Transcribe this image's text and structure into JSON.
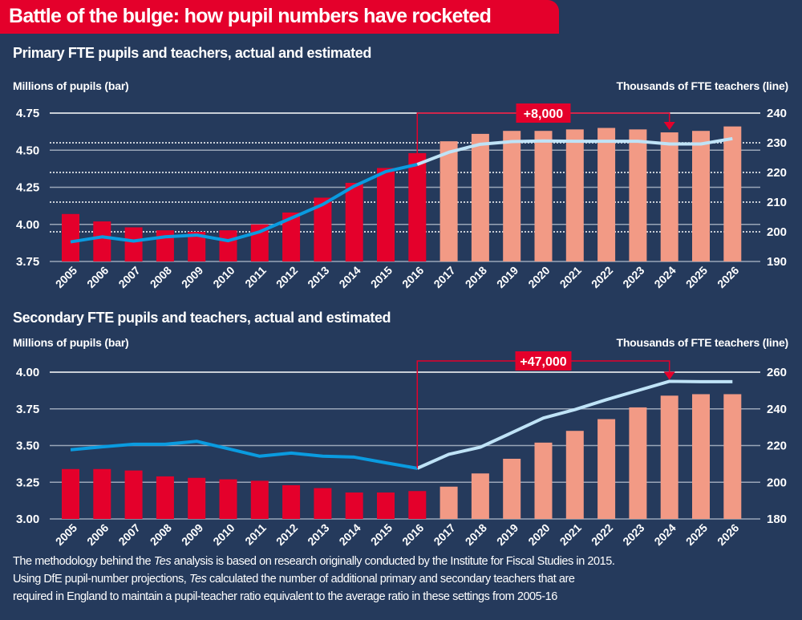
{
  "title": "Battle of the bulge: how pupil numbers have rocketed",
  "colors": {
    "background": "#253a5c",
    "banner": "#e4002b",
    "actual_bar": "#e4002b",
    "estimated_bar": "#f29a85",
    "actual_line": "#0a9be0",
    "estimated_line": "#bfe3f7",
    "annotation": "#e4002b"
  },
  "chart_data": [
    {
      "type": "bar+line",
      "title": "Primary FTE pupils and teachers, actual and estimated",
      "ylabel": "Millions of pupils (bar)",
      "y2label": "Thousands of FTE teachers (line)",
      "ylim": [
        3.75,
        4.75
      ],
      "yticks": [
        "4.75",
        "4.50",
        "4.25",
        "4.00",
        "3.75"
      ],
      "y2lim": [
        190,
        240
      ],
      "y2ticks": [
        "240",
        "230",
        "220",
        "210",
        "200",
        "190"
      ],
      "categories": [
        "2005",
        "2006",
        "2007",
        "2008",
        "2009",
        "2010",
        "2011",
        "2012",
        "2013",
        "2014",
        "2015",
        "2016",
        "2017",
        "2018",
        "2019",
        "2020",
        "2021",
        "2022",
        "2023",
        "2024",
        "2025",
        "2026"
      ],
      "last_actual": "2016",
      "pupils_millions": [
        4.07,
        4.02,
        3.98,
        3.96,
        3.95,
        3.96,
        4.0,
        4.08,
        4.18,
        4.28,
        4.38,
        4.48,
        4.56,
        4.61,
        4.63,
        4.63,
        4.64,
        4.65,
        4.64,
        4.62,
        4.63,
        4.66
      ],
      "teachers_thousands": [
        196.6,
        198.3,
        196.9,
        198.3,
        198.9,
        197.0,
        200.0,
        204.6,
        209.2,
        215.4,
        220.3,
        222.7,
        226.8,
        229.5,
        230.4,
        230.6,
        230.5,
        230.5,
        230.5,
        229.6,
        229.6,
        231.4
      ],
      "annotation": {
        "label": "+8,000",
        "from": "2016",
        "to": "2024"
      },
      "grid": true
    },
    {
      "type": "bar+line",
      "title": "Secondary FTE pupils and teachers, actual and estimated",
      "ylabel": "Millions of pupils (bar)",
      "y2label": "Thousands of FTE teachers (line)",
      "ylim": [
        3.0,
        4.0
      ],
      "yticks": [
        "4.00",
        "3.75",
        "3.50",
        "3.25",
        "3.00"
      ],
      "y2lim": [
        180,
        260
      ],
      "y2ticks": [
        "260",
        "240",
        "220",
        "200",
        "180"
      ],
      "categories": [
        "2005",
        "2006",
        "2007",
        "2008",
        "2009",
        "2010",
        "2011",
        "2012",
        "2013",
        "2014",
        "2015",
        "2016",
        "2017",
        "2018",
        "2019",
        "2020",
        "2021",
        "2022",
        "2023",
        "2024",
        "2025",
        "2026"
      ],
      "last_actual": "2016",
      "pupils_millions": [
        3.34,
        3.34,
        3.33,
        3.29,
        3.28,
        3.27,
        3.26,
        3.23,
        3.21,
        3.18,
        3.18,
        3.19,
        3.22,
        3.31,
        3.41,
        3.52,
        3.6,
        3.68,
        3.76,
        3.84,
        3.85,
        3.85
      ],
      "teachers_thousands": [
        217.7,
        219.3,
        220.7,
        220.7,
        222.3,
        218.3,
        214.2,
        215.9,
        214.2,
        213.7,
        210.6,
        207.6,
        215.2,
        219.1,
        227.0,
        235.0,
        239.6,
        245.0,
        250.0,
        255.0,
        254.8,
        254.8
      ],
      "annotation": {
        "label": "+47,000",
        "from": "2016",
        "to": "2024"
      },
      "grid": true
    }
  ],
  "note": {
    "line1_pre": "The methodology behind the ",
    "line1_em": "Tes",
    "line1_post": " analysis is based on research originally conducted by the Institute for Fiscal Studies in 2015.",
    "line2_pre": "Using DfE pupil-number projections, ",
    "line2_em": "Tes",
    "line2_post": " calculated the number of additional primary and secondary teachers that are",
    "line3": "required in England to maintain a pupil-teacher ratio equivalent to the average ratio in these settings from 2005-16"
  }
}
